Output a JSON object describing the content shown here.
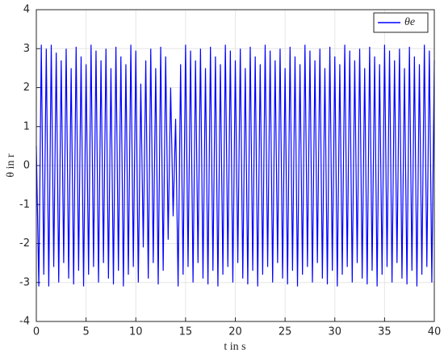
{
  "chart_data": {
    "type": "line",
    "xlabel": "t in s",
    "ylabel": "θ in r",
    "xlim": [
      0,
      40
    ],
    "ylim": [
      -4,
      4
    ],
    "xticks": [
      0,
      5,
      10,
      15,
      20,
      25,
      30,
      35,
      40
    ],
    "yticks": [
      -4,
      -3,
      -2,
      -1,
      0,
      1,
      2,
      3,
      4
    ],
    "grid": true,
    "legend": "northeast",
    "x": [
      0,
      0.25,
      0.5,
      0.75,
      1,
      1.25,
      1.5,
      1.75,
      2,
      2.25,
      2.5,
      2.75,
      3,
      3.25,
      3.5,
      3.75,
      4,
      4.25,
      4.5,
      4.75,
      5,
      5.25,
      5.5,
      5.75,
      6,
      6.25,
      6.5,
      6.75,
      7,
      7.25,
      7.5,
      7.75,
      8,
      8.25,
      8.5,
      8.75,
      9,
      9.25,
      9.5,
      9.75,
      10,
      10.25,
      10.5,
      10.75,
      11,
      11.25,
      11.5,
      11.75,
      12,
      12.25,
      12.5,
      12.75,
      13,
      13.25,
      13.5,
      13.75,
      14,
      14.25,
      14.5,
      14.75,
      15,
      15.25,
      15.5,
      15.75,
      16,
      16.25,
      16.5,
      16.75,
      17,
      17.25,
      17.5,
      17.75,
      18,
      18.25,
      18.5,
      18.75,
      19,
      19.25,
      19.5,
      19.75,
      20,
      20.25,
      20.5,
      20.75,
      21,
      21.25,
      21.5,
      21.75,
      22,
      22.25,
      22.5,
      22.75,
      23,
      23.25,
      23.5,
      23.75,
      24,
      24.25,
      24.5,
      24.75,
      25,
      25.25,
      25.5,
      25.75,
      26,
      26.25,
      26.5,
      26.75,
      27,
      27.25,
      27.5,
      27.75,
      28,
      28.25,
      28.5,
      28.75,
      29,
      29.25,
      29.5,
      29.75,
      30,
      30.25,
      30.5,
      30.75,
      31,
      31.25,
      31.5,
      31.75,
      32,
      32.25,
      32.5,
      32.75,
      33,
      33.25,
      33.5,
      33.75,
      34,
      34.25,
      34.5,
      34.75,
      35,
      35.25,
      35.5,
      35.75,
      36,
      36.25,
      36.5,
      36.75,
      37,
      37.25,
      37.5,
      37.75,
      38,
      38.25,
      38.5,
      38.75,
      39,
      39.25,
      39.5,
      39.75,
      40
    ],
    "series": [
      {
        "name": "θe",
        "color": "#0000ff",
        "values": [
          0.5,
          -3.1,
          3.1,
          -2.8,
          3.0,
          -3.1,
          3.1,
          -2.6,
          2.9,
          -3.0,
          2.7,
          -2.5,
          3.0,
          -2.9,
          2.5,
          -3.05,
          3.05,
          -2.7,
          2.8,
          -3.1,
          2.6,
          -2.8,
          3.1,
          -2.6,
          2.95,
          -3.0,
          2.7,
          -2.5,
          3.0,
          -2.9,
          2.5,
          -3.05,
          3.05,
          -2.7,
          2.8,
          -3.1,
          2.6,
          -2.8,
          3.1,
          -2.6,
          2.95,
          -3.0,
          2.1,
          -2.1,
          2.7,
          -2.9,
          3.0,
          -2.5,
          2.5,
          -3.05,
          3.05,
          -2.7,
          2.8,
          -1.9,
          2.0,
          -1.3,
          1.2,
          -3.1,
          2.6,
          -2.8,
          3.1,
          -2.6,
          2.95,
          -3.0,
          2.7,
          -2.5,
          3.0,
          -2.9,
          2.5,
          -3.05,
          3.05,
          -2.7,
          2.8,
          -3.1,
          2.6,
          -2.8,
          3.1,
          -2.6,
          2.95,
          -3.0,
          2.7,
          -2.5,
          3.0,
          -2.9,
          2.5,
          -3.05,
          3.05,
          -2.7,
          2.8,
          -3.1,
          2.6,
          -2.8,
          3.1,
          -2.6,
          2.95,
          -3.0,
          2.7,
          -2.5,
          3.0,
          -2.9,
          2.5,
          -3.05,
          3.05,
          -2.7,
          2.8,
          -3.1,
          2.6,
          -2.8,
          3.1,
          -2.6,
          2.95,
          -3.0,
          2.7,
          -2.5,
          3.0,
          -2.9,
          2.5,
          -3.05,
          3.05,
          -2.7,
          2.8,
          -3.1,
          2.6,
          -2.8,
          3.1,
          -2.6,
          2.95,
          -3.0,
          2.7,
          -2.5,
          3.0,
          -2.9,
          2.5,
          -3.05,
          3.05,
          -2.7,
          2.8,
          -3.1,
          2.6,
          -2.8,
          3.1,
          -2.6,
          2.95,
          -3.0,
          2.7,
          -2.5,
          3.0,
          -2.9,
          2.5,
          -3.05,
          3.05,
          -2.7,
          2.8,
          -3.1,
          2.6,
          -2.8,
          3.1,
          -2.6,
          2.95,
          -3.0,
          2.7
        ]
      }
    ]
  }
}
